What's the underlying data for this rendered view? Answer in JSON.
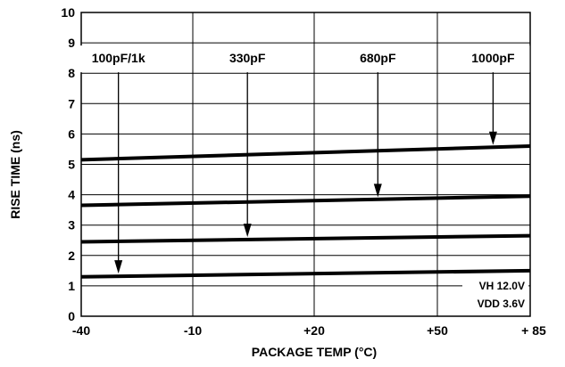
{
  "chart_data": {
    "type": "line",
    "xlabel": "PACKAGE TEMP (°C)",
    "ylabel": "RISE TIME (ns)",
    "x_ticks": [
      -40,
      -10,
      20,
      50,
      85
    ],
    "x_tick_labels": [
      "-40",
      "-10",
      "+20",
      "+50",
      "+ 85"
    ],
    "xlim": [
      -40,
      85
    ],
    "ylim": [
      0,
      10
    ],
    "y_ticks": [
      0,
      1,
      2,
      3,
      4,
      5,
      6,
      7,
      8,
      9,
      10
    ],
    "y_tick_labels": [
      "0",
      "1",
      "2",
      "3",
      "4",
      "5",
      "6",
      "7",
      "8",
      "9",
      "10"
    ],
    "grid": true,
    "series": [
      {
        "name": "100pF/1k",
        "x": [
          -40,
          85
        ],
        "values": [
          1.3,
          1.5
        ]
      },
      {
        "name": "330pF",
        "x": [
          -40,
          85
        ],
        "values": [
          2.45,
          2.65
        ]
      },
      {
        "name": "680pF",
        "x": [
          -40,
          85
        ],
        "values": [
          3.65,
          3.95
        ]
      },
      {
        "name": "1000pF",
        "x": [
          -40,
          85
        ],
        "values": [
          5.15,
          5.6
        ]
      }
    ],
    "annotations": [
      {
        "text": "100pF/1k",
        "label_x": -30,
        "label_y": 8.5,
        "arrow_x": -30
      },
      {
        "text": "330pF",
        "label_x": 3.5,
        "label_y": 8.5,
        "arrow_x": 3.5
      },
      {
        "text": "680pF",
        "label_x": 35.5,
        "label_y": 8.5,
        "arrow_x": 35.5
      },
      {
        "text": "1000pF",
        "label_x": 71,
        "label_y": 8.5,
        "arrow_x": 71
      }
    ],
    "conditions": [
      "VH 12.0V",
      "VDD 3.6V"
    ]
  }
}
